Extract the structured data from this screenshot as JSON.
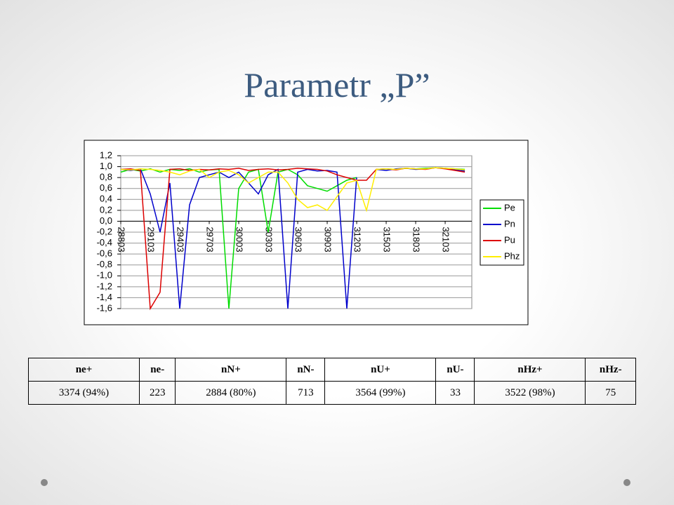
{
  "title": "Parametr „P”",
  "chart_data": {
    "type": "line",
    "x": [
      28803,
      28903,
      29003,
      29103,
      29203,
      29303,
      29403,
      29503,
      29603,
      29703,
      29803,
      29903,
      30003,
      30103,
      30203,
      30303,
      30403,
      30503,
      30603,
      30703,
      30803,
      30903,
      31003,
      31103,
      31203,
      31303,
      31403,
      31503,
      31603,
      31703,
      31803,
      31903,
      32003,
      32103,
      32203,
      32303
    ],
    "series": [
      {
        "name": "Pe",
        "color": "#00dd00",
        "values": [
          0.9,
          0.95,
          0.92,
          0.96,
          0.9,
          0.95,
          0.93,
          0.96,
          0.9,
          0.94,
          0.95,
          -1.6,
          0.6,
          0.9,
          0.95,
          -0.2,
          0.9,
          0.95,
          0.85,
          0.65,
          0.6,
          0.55,
          0.65,
          0.75,
          0.8,
          null,
          0.95,
          0.96,
          0.95,
          0.97,
          0.96,
          0.97,
          0.98,
          0.97,
          0.96,
          0.95
        ]
      },
      {
        "name": "Pn",
        "color": "#0000cc",
        "values": [
          0.95,
          0.93,
          0.96,
          0.5,
          -0.2,
          0.7,
          -1.6,
          0.3,
          0.8,
          0.85,
          0.9,
          0.8,
          0.9,
          0.7,
          0.5,
          0.85,
          0.95,
          -1.6,
          0.9,
          0.95,
          0.92,
          0.93,
          0.9,
          -1.6,
          0.8,
          null,
          0.95,
          0.93,
          0.96,
          0.97,
          0.95,
          0.96,
          0.98,
          0.97,
          0.94,
          0.92
        ]
      },
      {
        "name": "Pu",
        "color": "#dd0000",
        "values": [
          0.95,
          0.96,
          0.93,
          -1.6,
          -1.3,
          0.95,
          0.96,
          0.93,
          0.95,
          0.94,
          0.96,
          0.95,
          0.97,
          0.93,
          0.95,
          0.96,
          0.94,
          0.95,
          0.97,
          0.96,
          0.95,
          0.92,
          0.85,
          0.8,
          0.75,
          0.75,
          0.95,
          0.96,
          0.94,
          0.97,
          0.96,
          0.95,
          0.98,
          0.96,
          0.93,
          0.9
        ]
      },
      {
        "name": "Phz",
        "color": "#ffee00",
        "values": [
          0.95,
          0.94,
          0.96,
          0.95,
          0.93,
          0.9,
          0.85,
          0.92,
          0.95,
          0.8,
          0.9,
          0.93,
          0.85,
          0.7,
          0.8,
          0.9,
          0.9,
          0.7,
          0.4,
          0.25,
          0.3,
          0.2,
          0.45,
          0.7,
          0.75,
          0.2,
          0.95,
          0.96,
          0.95,
          0.97,
          0.96,
          0.96,
          0.98,
          0.97,
          0.96,
          0.94
        ]
      }
    ],
    "xlim": [
      28803,
      32374
    ],
    "xticks": [
      28803,
      29103,
      29403,
      29703,
      30003,
      30303,
      30603,
      30903,
      31203,
      31503,
      31803,
      32103
    ],
    "ylim": [
      -1.6,
      1.2
    ],
    "yticks": [
      {
        "value": 1.2,
        "label": "1,2"
      },
      {
        "value": 1.0,
        "label": "1,0"
      },
      {
        "value": 0.8,
        "label": "0,8"
      },
      {
        "value": 0.6,
        "label": "0,6"
      },
      {
        "value": 0.4,
        "label": "0,4"
      },
      {
        "value": 0.2,
        "label": "0,2"
      },
      {
        "value": 0.0,
        "label": "0,0"
      },
      {
        "value": -0.2,
        "label": "-0,2"
      },
      {
        "value": -0.4,
        "label": "-0,4"
      },
      {
        "value": -0.6,
        "label": "-0,6"
      },
      {
        "value": -0.8,
        "label": "-0,8"
      },
      {
        "value": -1.0,
        "label": "-1,0"
      },
      {
        "value": -1.2,
        "label": "-1,2"
      },
      {
        "value": -1.4,
        "label": "-1,4"
      },
      {
        "value": -1.6,
        "label": "-1,6"
      }
    ],
    "grid": true
  },
  "table": {
    "headers": [
      "ne+",
      "ne-",
      "nN+",
      "nN-",
      "nU+",
      "nU-",
      "nHz+",
      "nHz-"
    ],
    "rows": [
      [
        "3374 (94%)",
        "223",
        "2884 (80%)",
        "713",
        "3564 (99%)",
        "33",
        "3522 (98%)",
        "75"
      ]
    ]
  }
}
